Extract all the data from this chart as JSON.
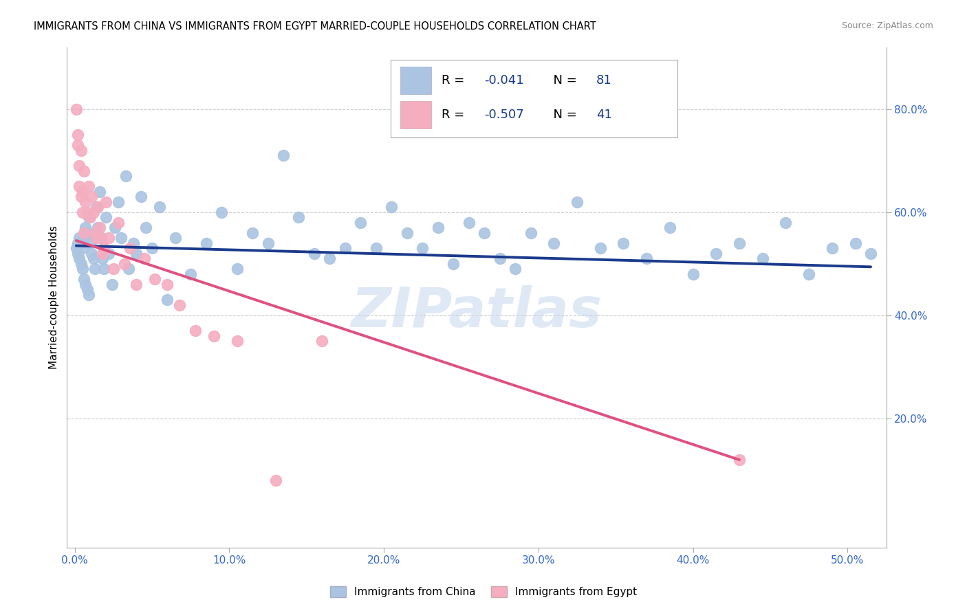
{
  "title": "IMMIGRANTS FROM CHINA VS IMMIGRANTS FROM EGYPT MARRIED-COUPLE HOUSEHOLDS CORRELATION CHART",
  "source": "Source: ZipAtlas.com",
  "xlabel_ticks": [
    "0.0%",
    "10.0%",
    "20.0%",
    "30.0%",
    "40.0%",
    "50.0%"
  ],
  "xlabel_vals": [
    0.0,
    0.1,
    0.2,
    0.3,
    0.4,
    0.5
  ],
  "ylabel": "Married-couple Households",
  "ylabel_ticks": [
    "20.0%",
    "40.0%",
    "60.0%",
    "80.0%"
  ],
  "ylabel_vals": [
    0.2,
    0.4,
    0.6,
    0.8
  ],
  "xlim": [
    -0.005,
    0.525
  ],
  "ylim": [
    -0.05,
    0.92
  ],
  "china_R": "-0.041",
  "china_N": "81",
  "egypt_R": "-0.507",
  "egypt_N": "41",
  "china_color": "#aac4e2",
  "egypt_color": "#f5adc0",
  "china_line_color": "#1a3a8c",
  "egypt_line_color": "#e05080",
  "legend_text_color": "#1a3a8c",
  "watermark": "ZIPatlas",
  "china_x": [
    0.001,
    0.002,
    0.002,
    0.003,
    0.003,
    0.004,
    0.004,
    0.005,
    0.005,
    0.006,
    0.006,
    0.007,
    0.007,
    0.008,
    0.008,
    0.009,
    0.009,
    0.01,
    0.011,
    0.012,
    0.013,
    0.014,
    0.015,
    0.016,
    0.017,
    0.018,
    0.019,
    0.02,
    0.022,
    0.024,
    0.026,
    0.028,
    0.03,
    0.033,
    0.035,
    0.038,
    0.04,
    0.043,
    0.046,
    0.05,
    0.055,
    0.06,
    0.065,
    0.075,
    0.085,
    0.095,
    0.105,
    0.115,
    0.125,
    0.135,
    0.145,
    0.155,
    0.165,
    0.175,
    0.185,
    0.195,
    0.205,
    0.215,
    0.225,
    0.235,
    0.245,
    0.255,
    0.265,
    0.275,
    0.285,
    0.295,
    0.31,
    0.325,
    0.34,
    0.355,
    0.37,
    0.385,
    0.4,
    0.415,
    0.43,
    0.445,
    0.46,
    0.475,
    0.49,
    0.505,
    0.515
  ],
  "china_y": [
    0.53,
    0.52,
    0.54,
    0.55,
    0.51,
    0.54,
    0.5,
    0.53,
    0.49,
    0.55,
    0.47,
    0.57,
    0.46,
    0.56,
    0.45,
    0.59,
    0.44,
    0.54,
    0.52,
    0.51,
    0.49,
    0.61,
    0.57,
    0.64,
    0.55,
    0.51,
    0.49,
    0.59,
    0.52,
    0.46,
    0.57,
    0.62,
    0.55,
    0.67,
    0.49,
    0.54,
    0.52,
    0.63,
    0.57,
    0.53,
    0.61,
    0.43,
    0.55,
    0.48,
    0.54,
    0.6,
    0.49,
    0.56,
    0.54,
    0.71,
    0.59,
    0.52,
    0.51,
    0.53,
    0.58,
    0.53,
    0.61,
    0.56,
    0.53,
    0.57,
    0.5,
    0.58,
    0.56,
    0.51,
    0.49,
    0.56,
    0.54,
    0.62,
    0.53,
    0.54,
    0.51,
    0.57,
    0.48,
    0.52,
    0.54,
    0.51,
    0.58,
    0.48,
    0.53,
    0.54,
    0.52
  ],
  "egypt_x": [
    0.001,
    0.002,
    0.002,
    0.003,
    0.003,
    0.004,
    0.004,
    0.005,
    0.005,
    0.006,
    0.006,
    0.007,
    0.008,
    0.009,
    0.01,
    0.011,
    0.012,
    0.013,
    0.014,
    0.015,
    0.016,
    0.017,
    0.018,
    0.019,
    0.02,
    0.022,
    0.025,
    0.028,
    0.032,
    0.036,
    0.04,
    0.045,
    0.052,
    0.06,
    0.068,
    0.078,
    0.09,
    0.105,
    0.13,
    0.16,
    0.43
  ],
  "egypt_y": [
    0.8,
    0.75,
    0.73,
    0.69,
    0.65,
    0.72,
    0.63,
    0.64,
    0.6,
    0.68,
    0.56,
    0.62,
    0.6,
    0.65,
    0.59,
    0.63,
    0.6,
    0.56,
    0.55,
    0.61,
    0.57,
    0.55,
    0.52,
    0.53,
    0.62,
    0.55,
    0.49,
    0.58,
    0.5,
    0.53,
    0.46,
    0.51,
    0.47,
    0.46,
    0.42,
    0.37,
    0.36,
    0.35,
    0.08,
    0.35,
    0.12
  ],
  "china_trend_x": [
    0.001,
    0.515
  ],
  "china_trend_y": [
    0.535,
    0.494
  ],
  "egypt_trend_x": [
    0.001,
    0.43
  ],
  "egypt_trend_y": [
    0.545,
    0.12
  ]
}
